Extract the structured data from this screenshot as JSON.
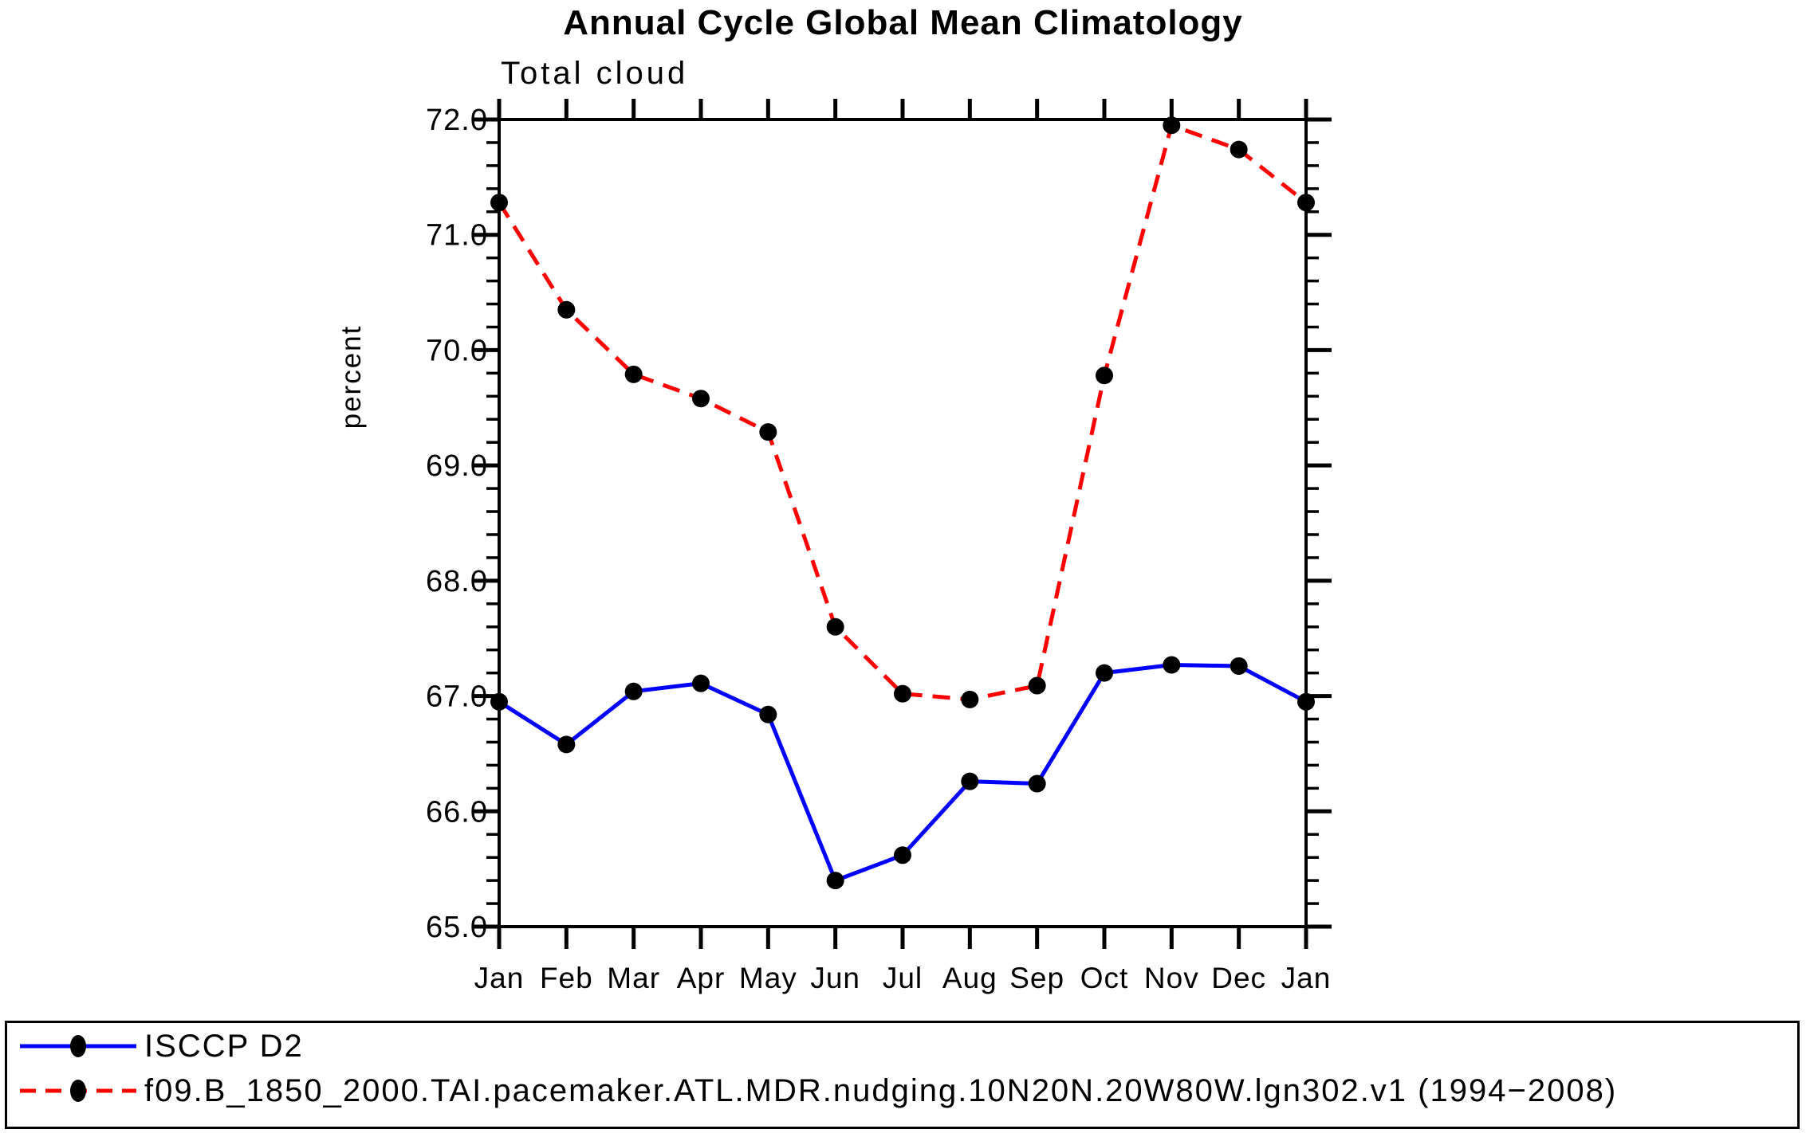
{
  "header": {
    "title": "Annual Cycle Global Mean Climatology"
  },
  "chart_data": {
    "type": "line",
    "title": "Total cloud",
    "xlabel": "",
    "ylabel": "percent",
    "categories": [
      "Jan",
      "Feb",
      "Mar",
      "Apr",
      "May",
      "Jun",
      "Jul",
      "Aug",
      "Sep",
      "Oct",
      "Nov",
      "Dec",
      "Jan"
    ],
    "ylim": [
      65.0,
      72.0
    ],
    "ytick_major_interval": 1.0,
    "ytick_minor_interval": 0.2,
    "ytick_labels": [
      "65.0",
      "66.0",
      "67.0",
      "68.0",
      "69.0",
      "70.0",
      "71.0",
      "72.0"
    ],
    "grid": false,
    "legend_position": "bottom-box",
    "series": [
      {
        "name": "ISCCP D2",
        "color": "#0000ff",
        "line_style": "solid",
        "marker": "filled-circle",
        "marker_color": "#000000",
        "values": [
          66.95,
          66.58,
          67.04,
          67.11,
          66.84,
          65.4,
          65.62,
          66.26,
          66.24,
          67.2,
          67.27,
          67.26,
          66.95
        ]
      },
      {
        "name": "f09.B_1850_2000.TAI.pacemaker.ATL.MDR.nudging.10N20N.20W80W.lgn302.v1 (1994−2008)",
        "color": "#ff0000",
        "line_style": "dashed",
        "marker": "filled-circle",
        "marker_color": "#000000",
        "values": [
          71.28,
          70.35,
          69.79,
          69.58,
          69.29,
          67.6,
          67.02,
          66.97,
          67.09,
          69.78,
          71.95,
          71.74,
          71.28
        ]
      }
    ]
  }
}
